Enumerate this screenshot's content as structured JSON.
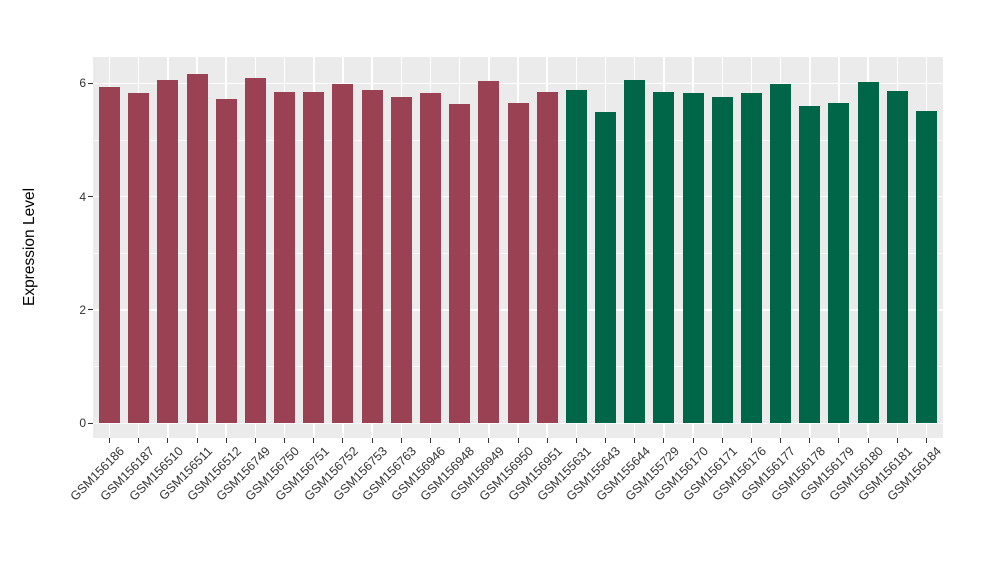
{
  "chart_data": {
    "type": "bar",
    "title": "",
    "xlabel": "",
    "ylabel": "Expression Level",
    "ylim": [
      0,
      6.5
    ],
    "yticks": [
      {
        "label": "0",
        "value": 0
      },
      {
        "label": "2",
        "value": 2
      },
      {
        "label": "4",
        "value": 4
      },
      {
        "label": "6",
        "value": 6
      }
    ],
    "yminor": [
      1,
      3,
      5
    ],
    "grid": "on",
    "legend": "none",
    "panel_bg": "#EBEBEB",
    "grid_color": "#FFFFFF",
    "tick_color": "#333333",
    "groups": [
      {
        "name": "group-1",
        "color": "#9A4254"
      },
      {
        "name": "group-2",
        "color": "#006648"
      }
    ],
    "bars": [
      {
        "label": "GSM156186",
        "value": 5.94,
        "group": 0
      },
      {
        "label": "GSM156187",
        "value": 5.83,
        "group": 0
      },
      {
        "label": "GSM156510",
        "value": 6.06,
        "group": 0
      },
      {
        "label": "GSM156511",
        "value": 6.16,
        "group": 0
      },
      {
        "label": "GSM156512",
        "value": 5.73,
        "group": 0
      },
      {
        "label": "GSM156749",
        "value": 6.1,
        "group": 0
      },
      {
        "label": "GSM156750",
        "value": 5.85,
        "group": 0
      },
      {
        "label": "GSM156751",
        "value": 5.85,
        "group": 0
      },
      {
        "label": "GSM156752",
        "value": 5.98,
        "group": 0
      },
      {
        "label": "GSM156753",
        "value": 5.88,
        "group": 0
      },
      {
        "label": "GSM156763",
        "value": 5.76,
        "group": 0
      },
      {
        "label": "GSM156946",
        "value": 5.83,
        "group": 0
      },
      {
        "label": "GSM156948",
        "value": 5.63,
        "group": 0
      },
      {
        "label": "GSM156949",
        "value": 6.04,
        "group": 0
      },
      {
        "label": "GSM156950",
        "value": 5.66,
        "group": 0
      },
      {
        "label": "GSM156951",
        "value": 5.85,
        "group": 0
      },
      {
        "label": "GSM155631",
        "value": 5.89,
        "group": 1
      },
      {
        "label": "GSM155643",
        "value": 5.5,
        "group": 1
      },
      {
        "label": "GSM155644",
        "value": 6.05,
        "group": 1
      },
      {
        "label": "GSM155729",
        "value": 5.85,
        "group": 1
      },
      {
        "label": "GSM156170",
        "value": 5.83,
        "group": 1
      },
      {
        "label": "GSM156171",
        "value": 5.76,
        "group": 1
      },
      {
        "label": "GSM156176",
        "value": 5.82,
        "group": 1
      },
      {
        "label": "GSM156177",
        "value": 5.99,
        "group": 1
      },
      {
        "label": "GSM156178",
        "value": 5.6,
        "group": 1
      },
      {
        "label": "GSM156179",
        "value": 5.66,
        "group": 1
      },
      {
        "label": "GSM156180",
        "value": 6.02,
        "group": 1
      },
      {
        "label": "GSM156181",
        "value": 5.86,
        "group": 1
      },
      {
        "label": "GSM156184",
        "value": 5.51,
        "group": 1
      }
    ]
  }
}
